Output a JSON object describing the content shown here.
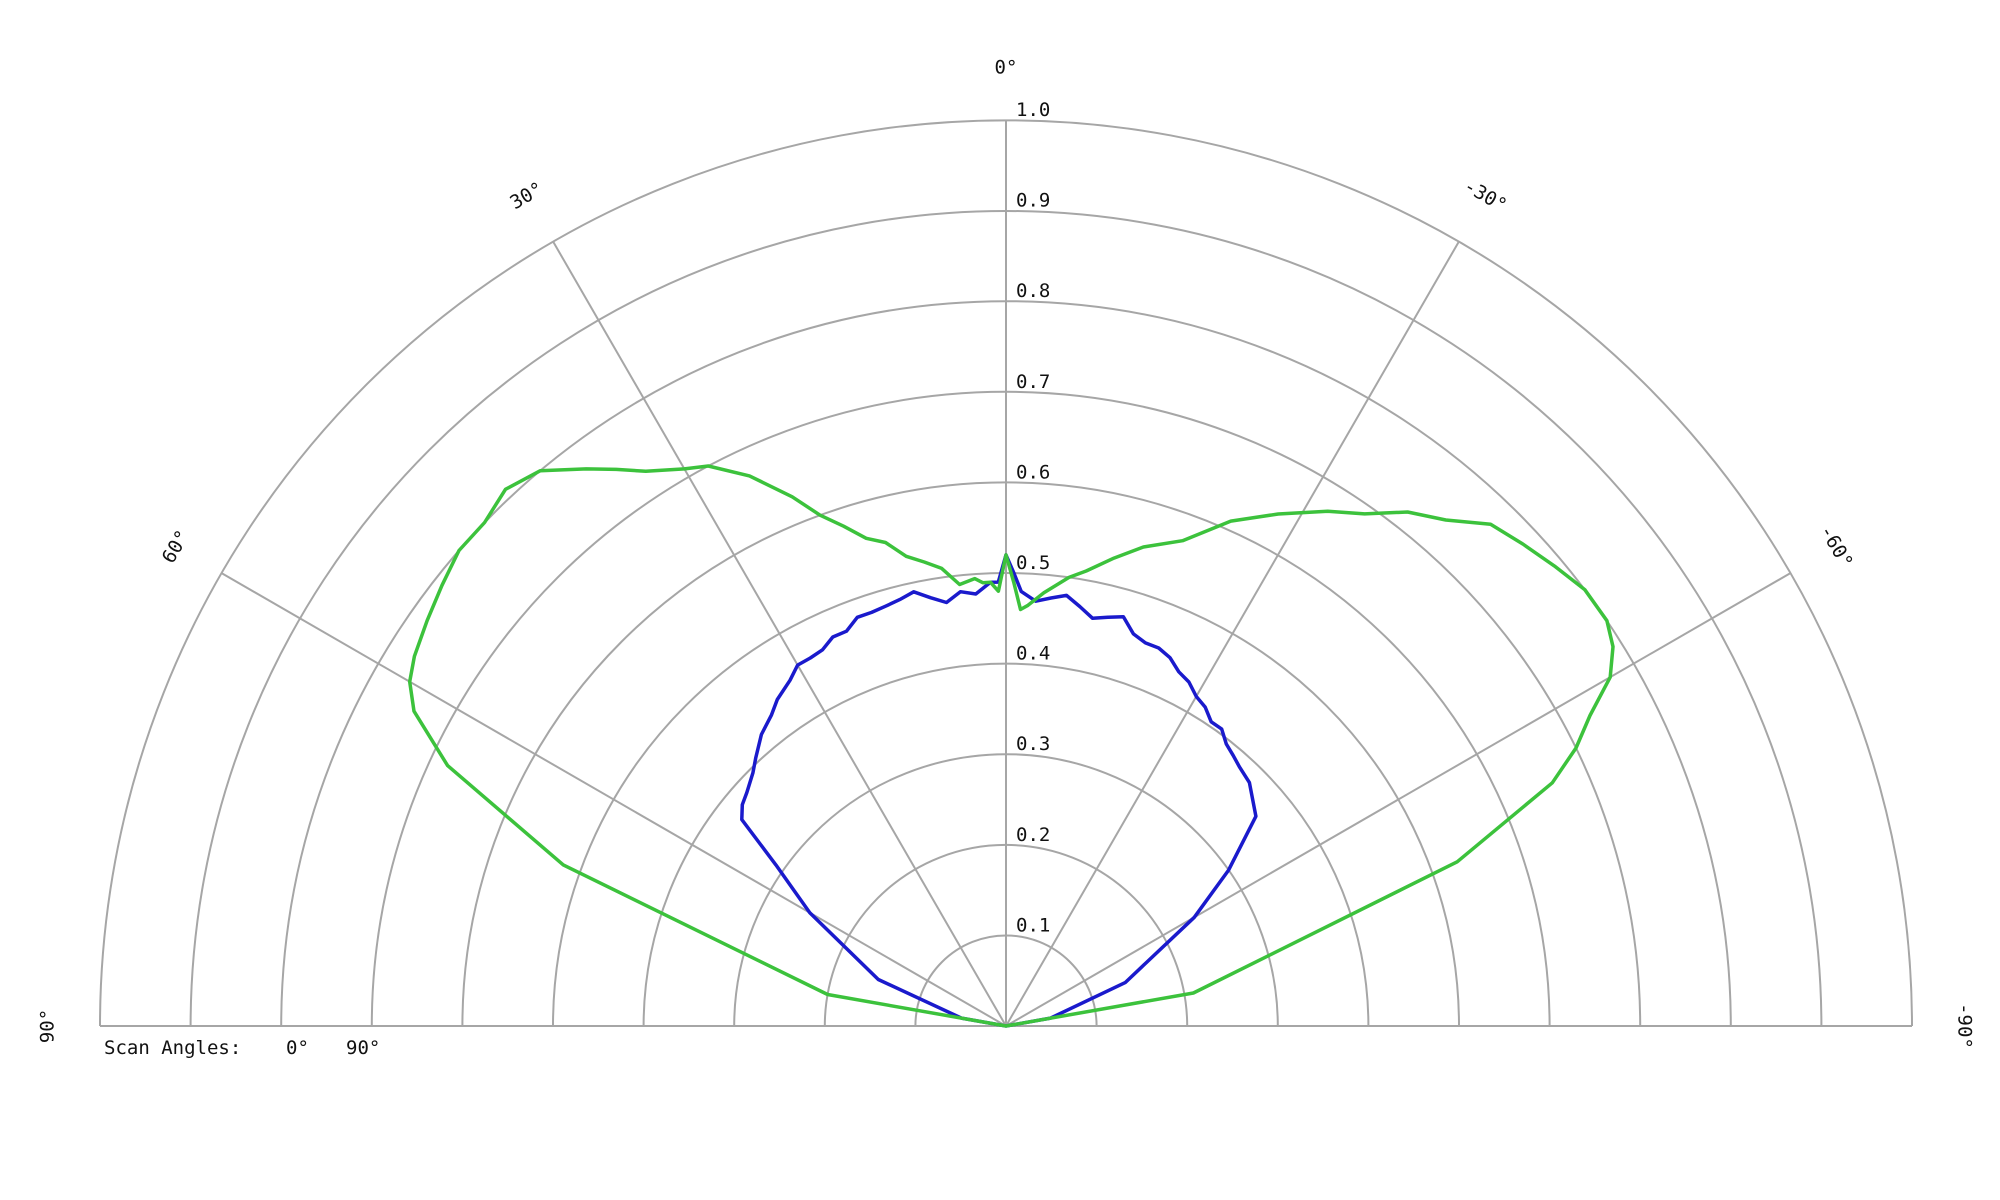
{
  "chart_data": {
    "type": "line",
    "subtype": "polar-semicircle",
    "angle_ticks": [
      {
        "angle": 0,
        "label": "0°"
      },
      {
        "angle": 30,
        "label": "30°"
      },
      {
        "angle": 60,
        "label": "60°"
      },
      {
        "angle": 90,
        "label": "90°"
      },
      {
        "angle": -30,
        "label": "-30°"
      },
      {
        "angle": -60,
        "label": "-60°"
      },
      {
        "angle": -90,
        "label": "-90°"
      }
    ],
    "radial_ticks": [
      "0.1",
      "0.2",
      "0.3",
      "0.4",
      "0.5",
      "0.6",
      "0.7",
      "0.8",
      "0.9",
      "1.0"
    ],
    "radial_range": [
      0,
      1.0
    ],
    "ring_step": 0.1,
    "spoke_angles": [
      90,
      60,
      30,
      0,
      -30,
      -60,
      -90
    ],
    "grid": true,
    "legend": {
      "title": "Scan Angles:",
      "position": "bottom-left",
      "items": [
        {
          "label": "0°",
          "color": "#1a1acc"
        },
        {
          "label": "90°",
          "color": "#3cc23c"
        }
      ]
    },
    "series": [
      {
        "color": "#1a1acc",
        "points": [
          [
            90,
            0
          ],
          [
            80,
            0.05
          ],
          [
            70,
            0.15
          ],
          [
            60,
            0.25
          ],
          [
            55,
            0.31
          ],
          [
            52,
            0.37
          ],
          [
            50,
            0.38
          ],
          [
            48,
            0.385
          ],
          [
            45,
            0.395
          ],
          [
            43,
            0.405
          ],
          [
            40,
            0.42
          ],
          [
            37,
            0.43
          ],
          [
            35,
            0.44
          ],
          [
            32,
            0.45
          ],
          [
            30,
            0.46
          ],
          [
            28,
            0.46
          ],
          [
            26,
            0.462
          ],
          [
            24,
            0.47
          ],
          [
            22,
            0.47
          ],
          [
            20,
            0.48
          ],
          [
            18,
            0.48
          ],
          [
            16,
            0.482
          ],
          [
            14,
            0.485
          ],
          [
            12,
            0.49
          ],
          [
            10,
            0.48
          ],
          [
            8,
            0.472
          ],
          [
            6,
            0.482
          ],
          [
            4,
            0.478
          ],
          [
            2,
            0.49
          ],
          [
            1,
            0.49
          ],
          [
            0,
            0.52
          ],
          [
            -1,
            0.5
          ],
          [
            -2,
            0.48
          ],
          [
            -4,
            0.47
          ],
          [
            -6,
            0.475
          ],
          [
            -8,
            0.48
          ],
          [
            -10,
            0.47
          ],
          [
            -12,
            0.46
          ],
          [
            -14,
            0.465
          ],
          [
            -16,
            0.47
          ],
          [
            -18,
            0.455
          ],
          [
            -20,
            0.45
          ],
          [
            -22,
            0.45
          ],
          [
            -24,
            0.445
          ],
          [
            -26,
            0.435
          ],
          [
            -28,
            0.43
          ],
          [
            -30,
            0.42
          ],
          [
            -32,
            0.415
          ],
          [
            -34,
            0.405
          ],
          [
            -36,
            0.405
          ],
          [
            -38,
            0.395
          ],
          [
            -40,
            0.39
          ],
          [
            -42,
            0.385
          ],
          [
            -45,
            0.38
          ],
          [
            -50,
            0.36
          ],
          [
            -55,
            0.3
          ],
          [
            -60,
            0.24
          ],
          [
            -70,
            0.14
          ],
          [
            -80,
            0.05
          ],
          [
            -90,
            0
          ]
        ]
      },
      {
        "color": "#3cc23c",
        "points": [
          [
            90,
            0
          ],
          [
            80,
            0.2
          ],
          [
            70,
            0.52
          ],
          [
            65,
            0.68
          ],
          [
            62,
            0.74
          ],
          [
            60,
            0.76
          ],
          [
            58,
            0.77
          ],
          [
            55,
            0.78
          ],
          [
            52,
            0.79
          ],
          [
            49,
            0.8
          ],
          [
            46,
            0.8
          ],
          [
            43,
            0.81
          ],
          [
            40,
            0.8
          ],
          [
            37,
            0.77
          ],
          [
            35,
            0.75
          ],
          [
            33,
            0.73
          ],
          [
            30,
            0.71
          ],
          [
            28,
            0.7
          ],
          [
            25,
            0.67
          ],
          [
            22,
            0.63
          ],
          [
            20,
            0.6
          ],
          [
            18,
            0.58
          ],
          [
            16,
            0.56
          ],
          [
            14,
            0.55
          ],
          [
            12,
            0.53
          ],
          [
            10,
            0.52
          ],
          [
            8,
            0.51
          ],
          [
            6,
            0.49
          ],
          [
            4,
            0.495
          ],
          [
            3,
            0.49
          ],
          [
            2,
            0.49
          ],
          [
            1,
            0.48
          ],
          [
            0,
            0.52
          ],
          [
            -1,
            0.49
          ],
          [
            -2,
            0.46
          ],
          [
            -3,
            0.465
          ],
          [
            -5,
            0.48
          ],
          [
            -8,
            0.5
          ],
          [
            -10,
            0.51
          ],
          [
            -13,
            0.53
          ],
          [
            -16,
            0.55
          ],
          [
            -20,
            0.57
          ],
          [
            -24,
            0.61
          ],
          [
            -28,
            0.64
          ],
          [
            -32,
            0.67
          ],
          [
            -35,
            0.69
          ],
          [
            -38,
            0.72
          ],
          [
            -41,
            0.74
          ],
          [
            -44,
            0.77
          ],
          [
            -47,
            0.78
          ],
          [
            -50,
            0.79
          ],
          [
            -53,
            0.8
          ],
          [
            -56,
            0.8
          ],
          [
            -58,
            0.79
          ],
          [
            -60,
            0.77
          ],
          [
            -62,
            0.73
          ],
          [
            -64,
            0.7
          ],
          [
            -66,
            0.66
          ],
          [
            -70,
            0.53
          ],
          [
            -80,
            0.21
          ],
          [
            -90,
            0
          ]
        ]
      }
    ]
  }
}
